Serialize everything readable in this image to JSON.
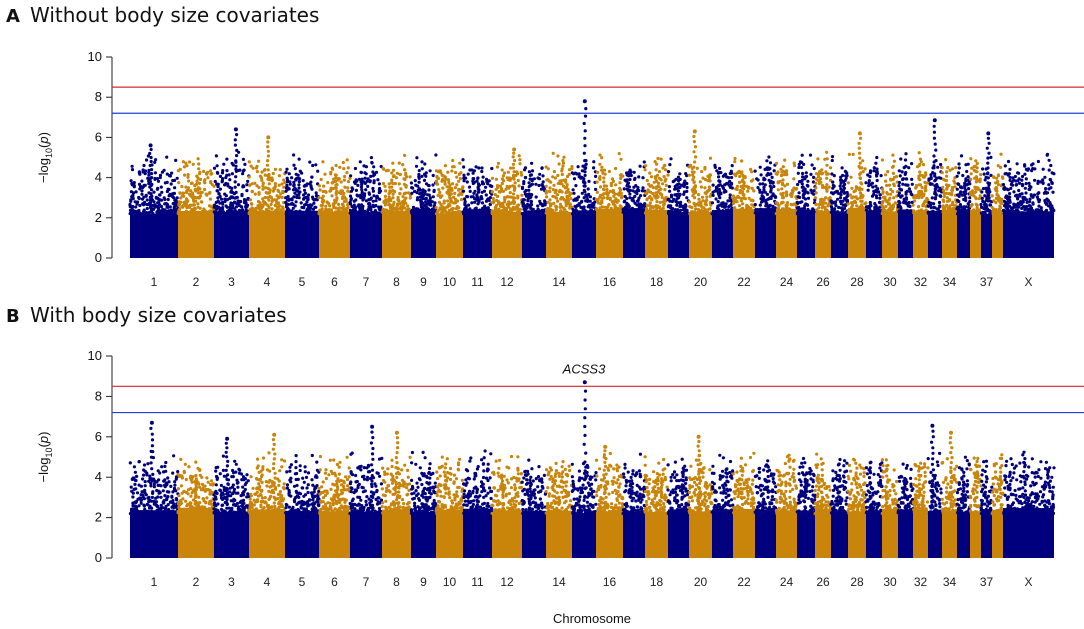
{
  "chart_data": [
    {
      "type": "scatter",
      "panel": "A",
      "title": "Without body size covariates",
      "xlabel": "",
      "ylabel": "-log10(p)",
      "ylim": [
        0,
        10
      ],
      "yticks": [
        0,
        2,
        4,
        6,
        8,
        10
      ],
      "thresholds": [
        {
          "name": "genome-wide",
          "value": 8.5,
          "color": "#d62728"
        },
        {
          "name": "suggestive",
          "value": 7.2,
          "color": "#1f3fd6"
        }
      ],
      "chromosome_labels": [
        "1",
        "2",
        "3",
        "4",
        "5",
        "6",
        "7",
        "8",
        "9",
        "10",
        "11",
        "12",
        "14",
        "16",
        "18",
        "20",
        "22",
        "24",
        "26",
        "28",
        "30",
        "32",
        "34",
        "37",
        "X"
      ],
      "colors": [
        "#00007f",
        "#c8850a"
      ],
      "peaks": [
        {
          "chromosome": "1",
          "value": 5.6
        },
        {
          "chromosome": "3",
          "value": 6.4
        },
        {
          "chromosome": "4",
          "value": 6.0
        },
        {
          "chromosome": "12",
          "value": 5.4
        },
        {
          "chromosome": "15",
          "value": 7.8
        },
        {
          "chromosome": "20",
          "value": 6.3
        },
        {
          "chromosome": "28",
          "value": 6.2
        },
        {
          "chromosome": "33",
          "value": 6.85
        },
        {
          "chromosome": "37",
          "value": 6.2
        }
      ],
      "annotations": []
    },
    {
      "type": "scatter",
      "panel": "B",
      "title": "With body size covariates",
      "xlabel": "Chromosome",
      "ylabel": "-log10(p)",
      "ylim": [
        0,
        10
      ],
      "yticks": [
        0,
        2,
        4,
        6,
        8,
        10
      ],
      "thresholds": [
        {
          "name": "genome-wide",
          "value": 8.5,
          "color": "#d62728"
        },
        {
          "name": "suggestive",
          "value": 7.2,
          "color": "#1f3fd6"
        }
      ],
      "chromosome_labels": [
        "1",
        "2",
        "3",
        "4",
        "5",
        "6",
        "7",
        "8",
        "9",
        "10",
        "11",
        "12",
        "14",
        "16",
        "18",
        "20",
        "22",
        "24",
        "26",
        "28",
        "30",
        "32",
        "34",
        "37",
        "X"
      ],
      "colors": [
        "#00007f",
        "#c8850a"
      ],
      "peaks": [
        {
          "chromosome": "1",
          "value": 6.7
        },
        {
          "chromosome": "3",
          "value": 5.9
        },
        {
          "chromosome": "4",
          "value": 6.1
        },
        {
          "chromosome": "7",
          "value": 6.5
        },
        {
          "chromosome": "8",
          "value": 6.2
        },
        {
          "chromosome": "15",
          "value": 8.7
        },
        {
          "chromosome": "16",
          "value": 5.5
        },
        {
          "chromosome": "20",
          "value": 6.0
        },
        {
          "chromosome": "33",
          "value": 6.55
        },
        {
          "chromosome": "34",
          "value": 6.2
        }
      ],
      "annotations": [
        {
          "label": "ACSS3",
          "chromosome": "15",
          "value": 8.7
        }
      ]
    }
  ]
}
